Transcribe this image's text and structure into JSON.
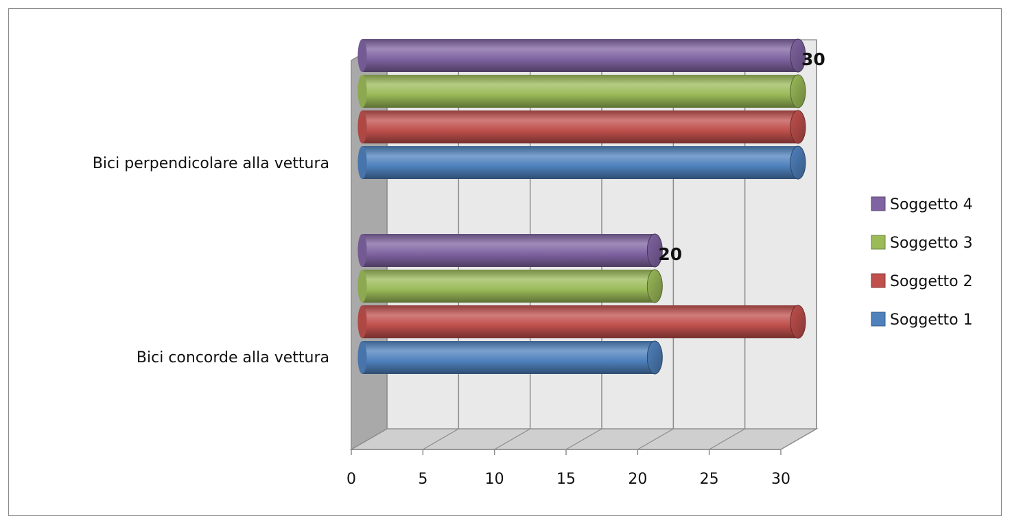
{
  "chart_data": {
    "type": "bar",
    "orientation": "horizontal",
    "style": "3d-cylinder",
    "title": "",
    "xlabel": "",
    "ylabel": "",
    "categories": [
      "Bici concorde alla vettura",
      "Bici perpendicolare alla vettura"
    ],
    "series": [
      {
        "name": "Soggetto 1",
        "color": "#4f81bd",
        "values": [
          20,
          30
        ]
      },
      {
        "name": "Soggetto 2",
        "color": "#c0504d",
        "values": [
          30,
          30
        ]
      },
      {
        "name": "Soggetto 3",
        "color": "#9bbb59",
        "values": [
          20,
          30
        ]
      },
      {
        "name": "Soggetto 4",
        "color": "#8064a2",
        "values": [
          20,
          30
        ]
      }
    ],
    "xlim": [
      0,
      30
    ],
    "xticks": [
      0,
      5,
      10,
      15,
      20,
      25,
      30
    ],
    "grid": true,
    "legend": "right",
    "legend_order": [
      "Soggetto 4",
      "Soggetto 3",
      "Soggetto 2",
      "Soggetto 1"
    ],
    "data_labels": [
      {
        "series": "Soggetto 4",
        "category": "Bici concorde alla vettura",
        "text": "20"
      },
      {
        "series": "Soggetto 4",
        "category": "Bici perpendicolare alla vettura",
        "text": "30"
      }
    ]
  }
}
